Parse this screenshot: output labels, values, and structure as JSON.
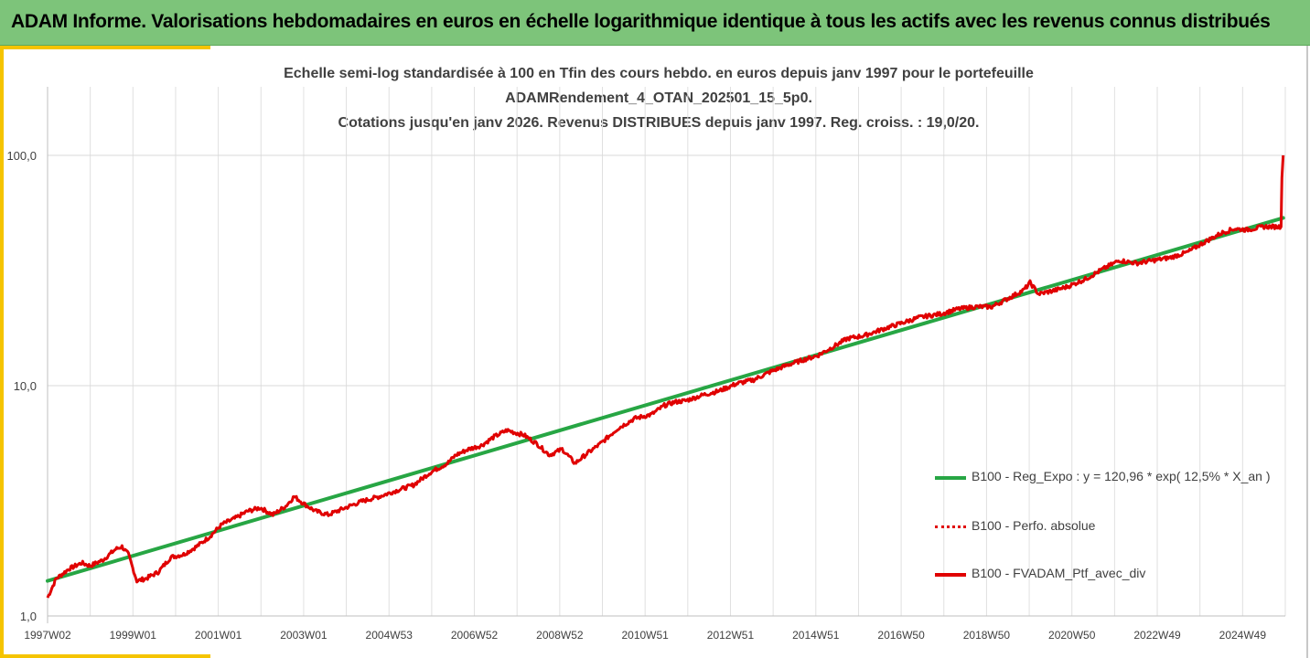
{
  "header": {
    "title": "ADAM Informe. Valorisations hebdomadaires en euros en échelle logarithmique identique à tous les actifs avec les revenus connus distribués"
  },
  "chart_data": {
    "type": "line",
    "title_lines": [
      "Echelle semi-log standardisée à 100 en Tfin des cours hebdo.  en euros depuis janv 1997 pour le portefeuille",
      "ADAMRendement_4_OTAN_202501_15_5p0.",
      "Cotations  jusqu'en janv 2026. Revenus DISTRIBUES depuis janv 1997. Reg. croiss. : 19,0/20."
    ],
    "y_scale": "log",
    "ylim": [
      1,
      100
    ],
    "y_tick_labels": [
      "100,0",
      "10,0",
      "1,0"
    ],
    "x_tick_labels": [
      "1997W02",
      "1999W01",
      "2001W01",
      "2003W01",
      "2004W53",
      "2006W52",
      "2008W52",
      "2010W51",
      "2012W51",
      "2014W51",
      "2016W50",
      "2018W50",
      "2020W50",
      "2022W49",
      "2024W49"
    ],
    "grid": true,
    "legend_position": "right",
    "colors": {
      "regression": "#27a644",
      "portfolio": "#e00000"
    },
    "series": [
      {
        "name": "B100 - Reg_Expo : y = 120,96 * exp( 12,5% *  X_an )",
        "style": "solid-green",
        "x": [
          1997.0,
          2026.05
        ],
        "y": [
          1.42,
          53.5
        ]
      },
      {
        "name": "B100 - Perfo. absolue",
        "style": "dotted-red",
        "x": [],
        "y": []
      },
      {
        "name": "B100 - FVADAM_Ptf_avec_div",
        "style": "solid-red",
        "x": [
          1997.0,
          1997.2,
          1997.5,
          1997.8,
          1998.0,
          1998.3,
          1998.6,
          1998.75,
          1998.9,
          1999.1,
          1999.3,
          1999.6,
          1999.9,
          2000.2,
          2000.5,
          2000.8,
          2001.1,
          2001.4,
          2001.7,
          2002.0,
          2002.3,
          2002.6,
          2002.8,
          2003.05,
          2003.3,
          2003.6,
          2004.0,
          2004.4,
          2004.8,
          2005.2,
          2005.6,
          2006.0,
          2006.4,
          2006.6,
          2006.9,
          2007.2,
          2007.5,
          2007.8,
          2008.2,
          2008.5,
          2008.8,
          2009.1,
          2009.4,
          2009.7,
          2010.0,
          2010.4,
          2010.8,
          2011.2,
          2011.5,
          2011.75,
          2012.0,
          2012.4,
          2012.8,
          2013.2,
          2013.6,
          2014.0,
          2014.4,
          2014.8,
          2015.1,
          2015.4,
          2015.8,
          2016.2,
          2016.6,
          2017.0,
          2017.5,
          2018.0,
          2018.4,
          2018.8,
          2019.2,
          2019.6,
          2019.95,
          2020.1,
          2020.3,
          2020.7,
          2021.0,
          2021.4,
          2021.8,
          2022.2,
          2022.6,
          2023.0,
          2023.4,
          2023.8,
          2024.2,
          2024.6,
          2024.9,
          2025.2,
          2025.6,
          2026.0,
          2026.02,
          2026.05
        ],
        "y": [
          1.2,
          1.45,
          1.6,
          1.7,
          1.65,
          1.75,
          1.95,
          2.0,
          1.85,
          1.42,
          1.45,
          1.55,
          1.8,
          1.85,
          2.0,
          2.2,
          2.5,
          2.65,
          2.85,
          2.95,
          2.75,
          3.0,
          3.3,
          3.05,
          2.85,
          2.75,
          2.95,
          3.15,
          3.3,
          3.5,
          3.7,
          4.2,
          4.6,
          5.0,
          5.3,
          5.5,
          6.0,
          6.4,
          6.1,
          5.6,
          5.0,
          5.3,
          4.6,
          5.1,
          5.6,
          6.5,
          7.2,
          7.5,
          8.2,
          8.5,
          8.6,
          9.1,
          9.5,
          10.2,
          10.6,
          11.5,
          12.3,
          13.0,
          13.5,
          14.5,
          16.0,
          16.5,
          17.5,
          18.5,
          19.8,
          20.5,
          21.5,
          22.0,
          22.0,
          24.0,
          26.0,
          28.0,
          25.0,
          26.0,
          27.0,
          29.0,
          32.0,
          35.0,
          34.0,
          35.0,
          36.0,
          38.0,
          42.0,
          46.0,
          48.0,
          47.5,
          49.0,
          49.0,
          80.0,
          100.0
        ]
      }
    ]
  }
}
